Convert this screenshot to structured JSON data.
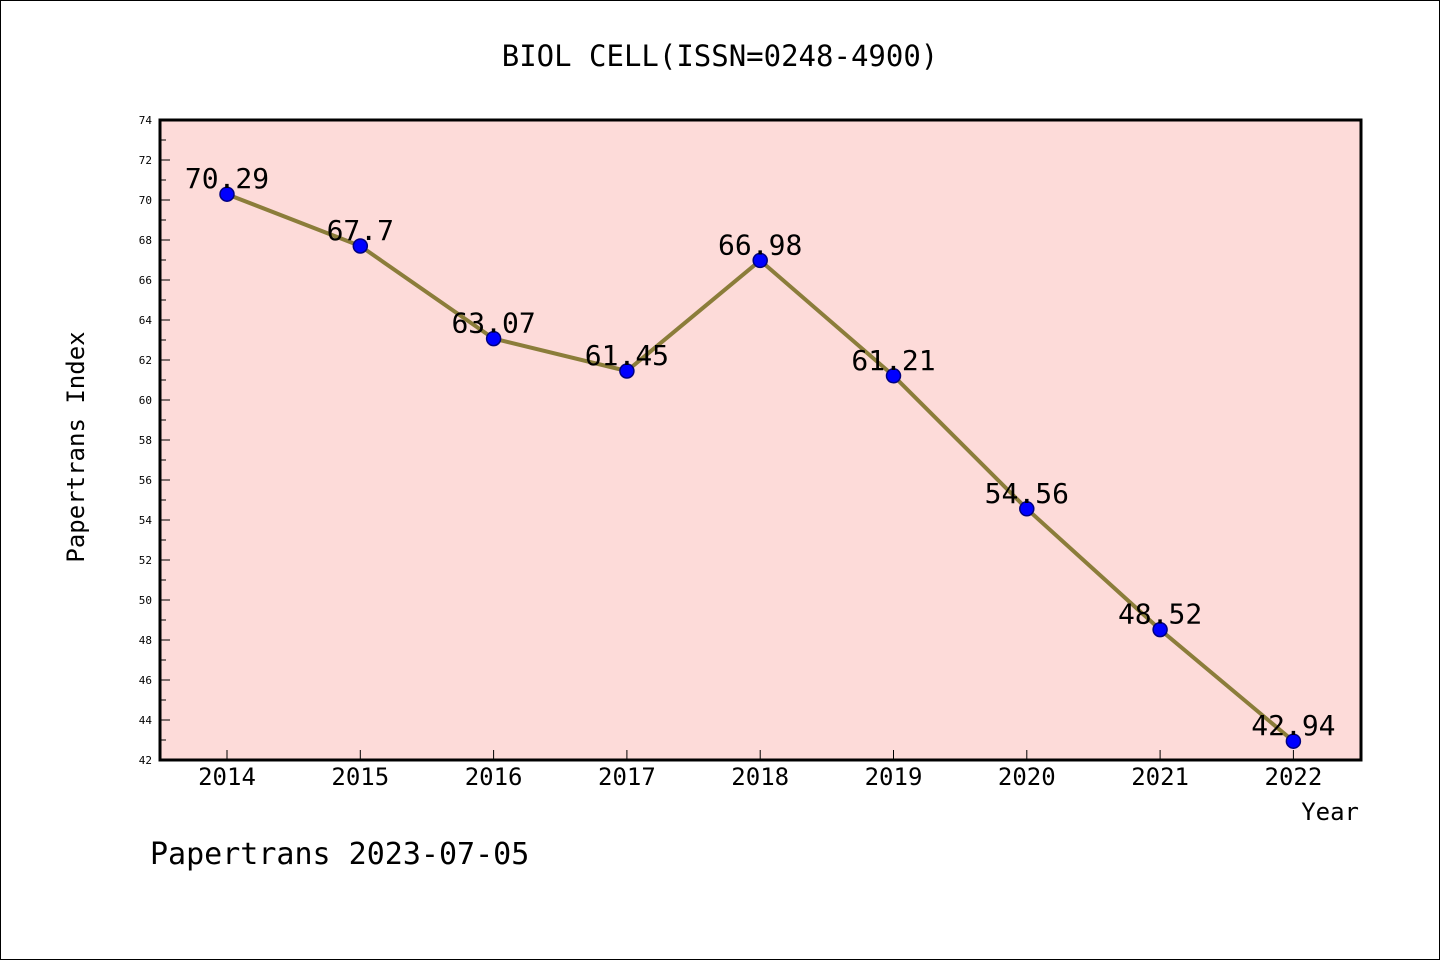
{
  "chart_data": {
    "type": "line",
    "title": "BIOL CELL(ISSN=0248-4900)",
    "xlabel": "Year",
    "ylabel": "Papertrans Index",
    "x": [
      "2014",
      "2015",
      "2016",
      "2017",
      "2018",
      "2019",
      "2020",
      "2021",
      "2022"
    ],
    "series": [
      {
        "values": [
          70.29,
          67.7,
          63.07,
          61.45,
          66.98,
          61.21,
          54.56,
          48.52,
          42.94
        ],
        "labels": [
          "70.29",
          "67.7",
          "63.07",
          "61.45",
          "66.98",
          "61.21",
          "54.56",
          "48.52",
          "42.94"
        ]
      }
    ],
    "ylim": [
      42,
      74
    ],
    "ytick_step": 2,
    "yticks": [
      "42",
      "44",
      "46",
      "48",
      "50",
      "52",
      "54",
      "56",
      "58",
      "60",
      "62",
      "64",
      "66",
      "68",
      "70",
      "72",
      "74"
    ],
    "grid": false,
    "legend": "none",
    "colors": {
      "plot_background": "#fddbd9",
      "line": "#8b7d3a",
      "marker": "#0000ff",
      "marker_edge": "#000080"
    }
  },
  "footer": {
    "source": "Papertrans 2023-07-05"
  }
}
